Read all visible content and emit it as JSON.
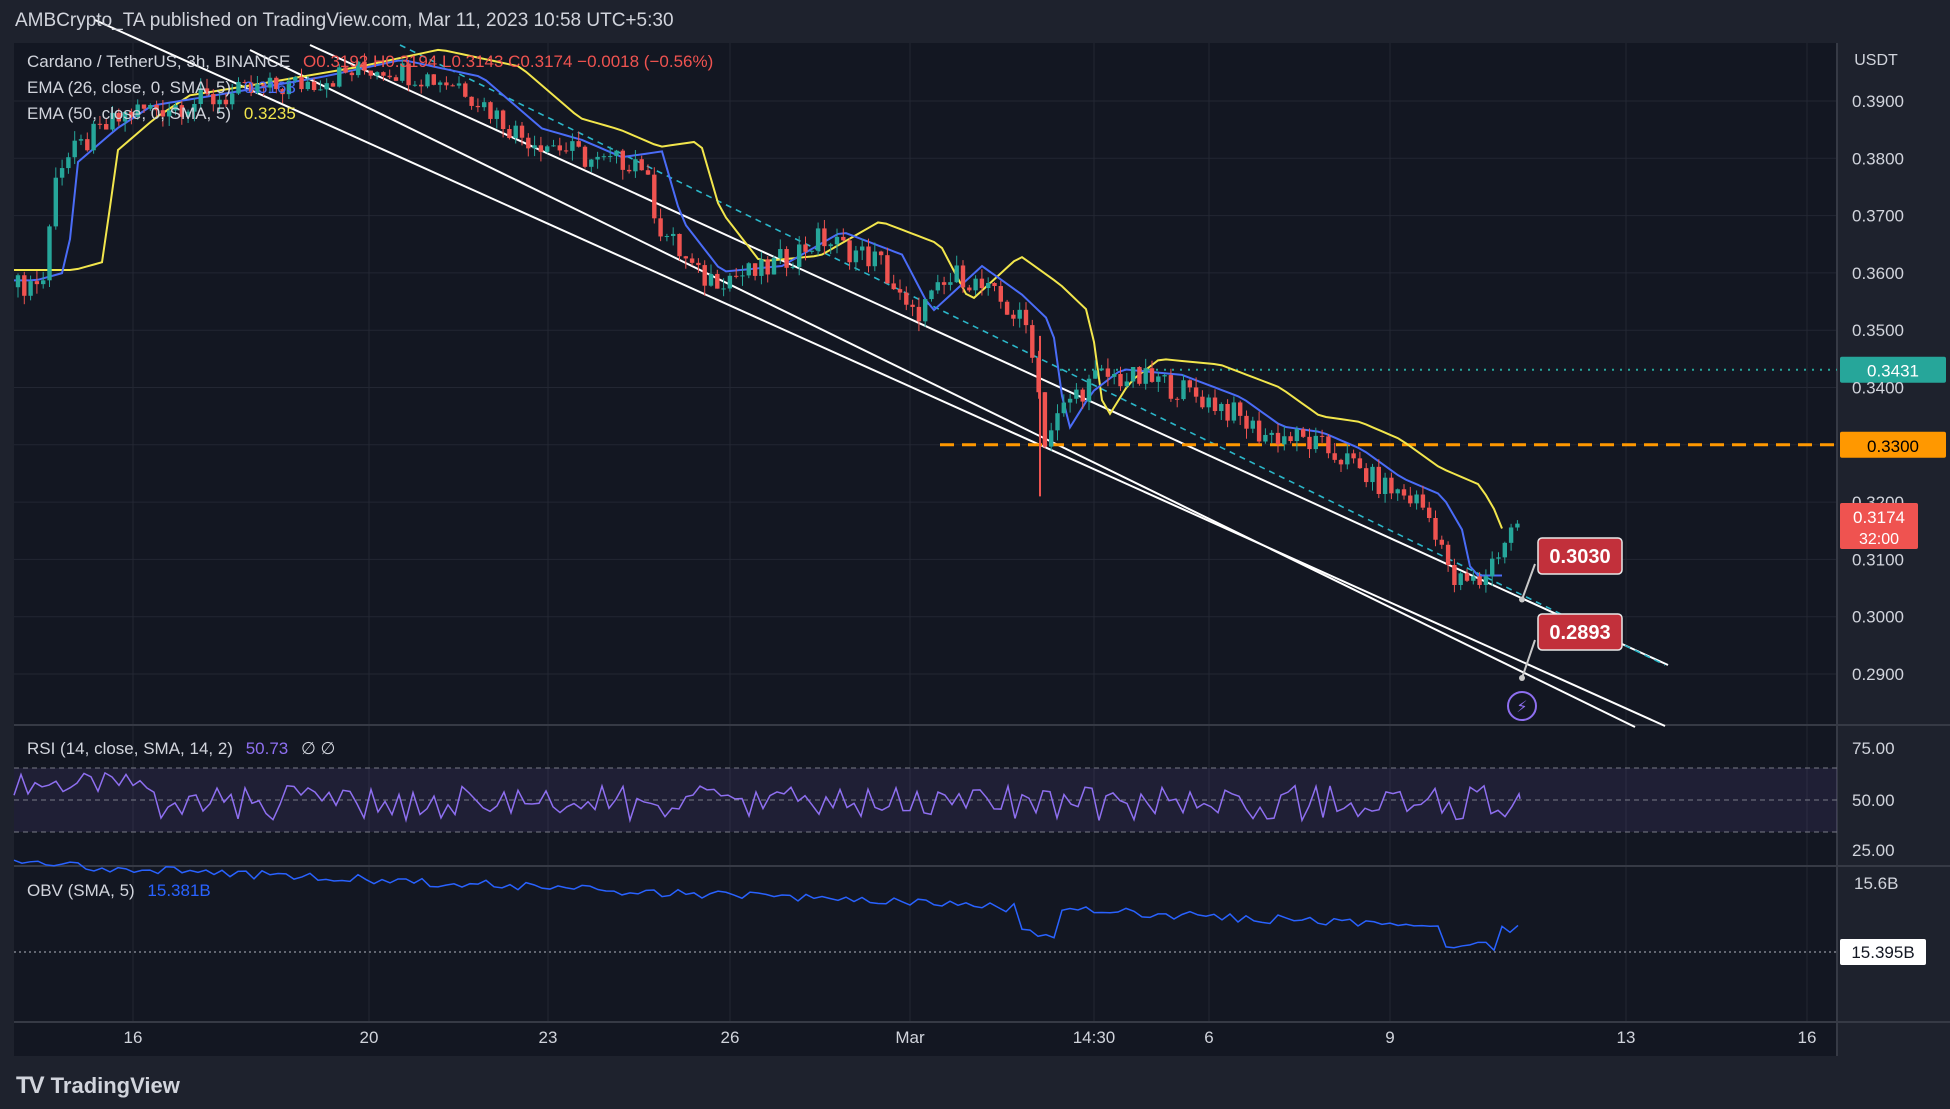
{
  "header": {
    "publisher": "AMBCrypto_TA published on TradingView.com, Mar 11, 2023 10:58 UTC+5:30"
  },
  "main_legend": {
    "symbol": "Cardano / TetherUS, 3h, BINANCE",
    "ohlc": "O0.3192 H0.3194 L0.3143 C0.3174 −0.0018 (−0.56%)"
  },
  "ema26_legend": {
    "label": "EMA (26, close, 0, SMA, 5)",
    "value": "0.3163",
    "color": "#4a6cf7"
  },
  "ema50_legend": {
    "label": "EMA (50, close, 0, SMA, 5)",
    "value": "0.3235",
    "color": "#f2e64c"
  },
  "rsi_legend": {
    "label": "RSI (14, close, SMA, 14, 2)",
    "value": "50.73",
    "extra": "∅ ∅",
    "color": "#8e6ff0"
  },
  "obv_legend": {
    "label": "OBV (SMA, 5)",
    "value": "15.381B",
    "color": "#2962ff"
  },
  "brand": {
    "name": "TradingView",
    "logo": "TV"
  },
  "colors": {
    "up": "#26a69a",
    "down": "#ef5350",
    "ema26": "#4a6cf7",
    "ema50": "#f2e64c",
    "rsi": "#8e6ff0",
    "obv": "#2962ff",
    "resistance": "#ff9800",
    "support_dotted": "#26a69a"
  },
  "chart_data": {
    "type": "candlestick",
    "price_axis": {
      "unit": "USDT",
      "ticks": [
        "0.3900",
        "0.3800",
        "0.3700",
        "0.3600",
        "0.3500",
        "0.3400",
        "0.3300",
        "0.3200",
        "0.3100",
        "0.3000",
        "0.2900"
      ],
      "range": [
        0.2805,
        0.4
      ]
    },
    "x_axis_labels": [
      "16",
      "20",
      "23",
      "26",
      "Mar",
      "14:30",
      "6",
      "9",
      "13",
      "16"
    ],
    "last_price": {
      "value": "0.3174",
      "countdown": "32:00"
    },
    "levels": [
      {
        "value": "0.3431",
        "style": "dotted",
        "color": "#26a69a"
      },
      {
        "value": "0.3300",
        "style": "dashed",
        "color": "#ff9800"
      }
    ],
    "targets": [
      "0.3030",
      "0.2893"
    ],
    "channel_lines": "descending parallel channel with dashed mid-line",
    "rsi": {
      "levels": [
        "75.00",
        "50.00",
        "25.00"
      ],
      "current": "50.73"
    },
    "obv": {
      "ticks": [
        "15.6B"
      ],
      "current": "15.395B"
    }
  }
}
